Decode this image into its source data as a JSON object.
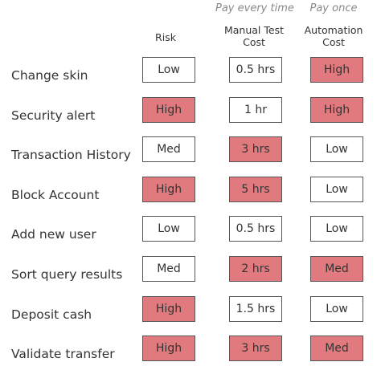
{
  "header": {
    "pay_every_time": "Pay every time",
    "pay_once": "Pay once",
    "columns": [
      {
        "label_line1": "Risk",
        "label_line2": ""
      },
      {
        "label_line1": "Manual Test",
        "label_line2": "Cost"
      },
      {
        "label_line1": "Automation",
        "label_line2": "Cost"
      }
    ]
  },
  "colors": {
    "highlight": "#e07a7e",
    "plain": "#ffffff",
    "border": "#555555"
  },
  "rows": [
    {
      "label": "Change skin",
      "risk": "Low",
      "manual": "0.5 hrs",
      "auto": "High",
      "risk_hl": false,
      "manual_hl": false,
      "auto_hl": true
    },
    {
      "label": "Security alert",
      "risk": "High",
      "manual": "1 hr",
      "auto": "High",
      "risk_hl": true,
      "manual_hl": false,
      "auto_hl": true
    },
    {
      "label": "Transaction History",
      "risk": "Med",
      "manual": "3 hrs",
      "auto": "Low",
      "risk_hl": false,
      "manual_hl": true,
      "auto_hl": false
    },
    {
      "label": "Block Account",
      "risk": "High",
      "manual": "5 hrs",
      "auto": "Low",
      "risk_hl": true,
      "manual_hl": true,
      "auto_hl": false
    },
    {
      "label": "Add new user",
      "risk": "Low",
      "manual": "0.5 hrs",
      "auto": "Low",
      "risk_hl": false,
      "manual_hl": false,
      "auto_hl": false
    },
    {
      "label": "Sort query results",
      "risk": "Med",
      "manual": "2 hrs",
      "auto": "Med",
      "risk_hl": false,
      "manual_hl": true,
      "auto_hl": true
    },
    {
      "label": "Deposit cash",
      "risk": "High",
      "manual": "1.5 hrs",
      "auto": "Low",
      "risk_hl": true,
      "manual_hl": false,
      "auto_hl": false
    },
    {
      "label": "Validate transfer",
      "risk": "High",
      "manual": "3 hrs",
      "auto": "Med",
      "risk_hl": true,
      "manual_hl": true,
      "auto_hl": true
    }
  ]
}
